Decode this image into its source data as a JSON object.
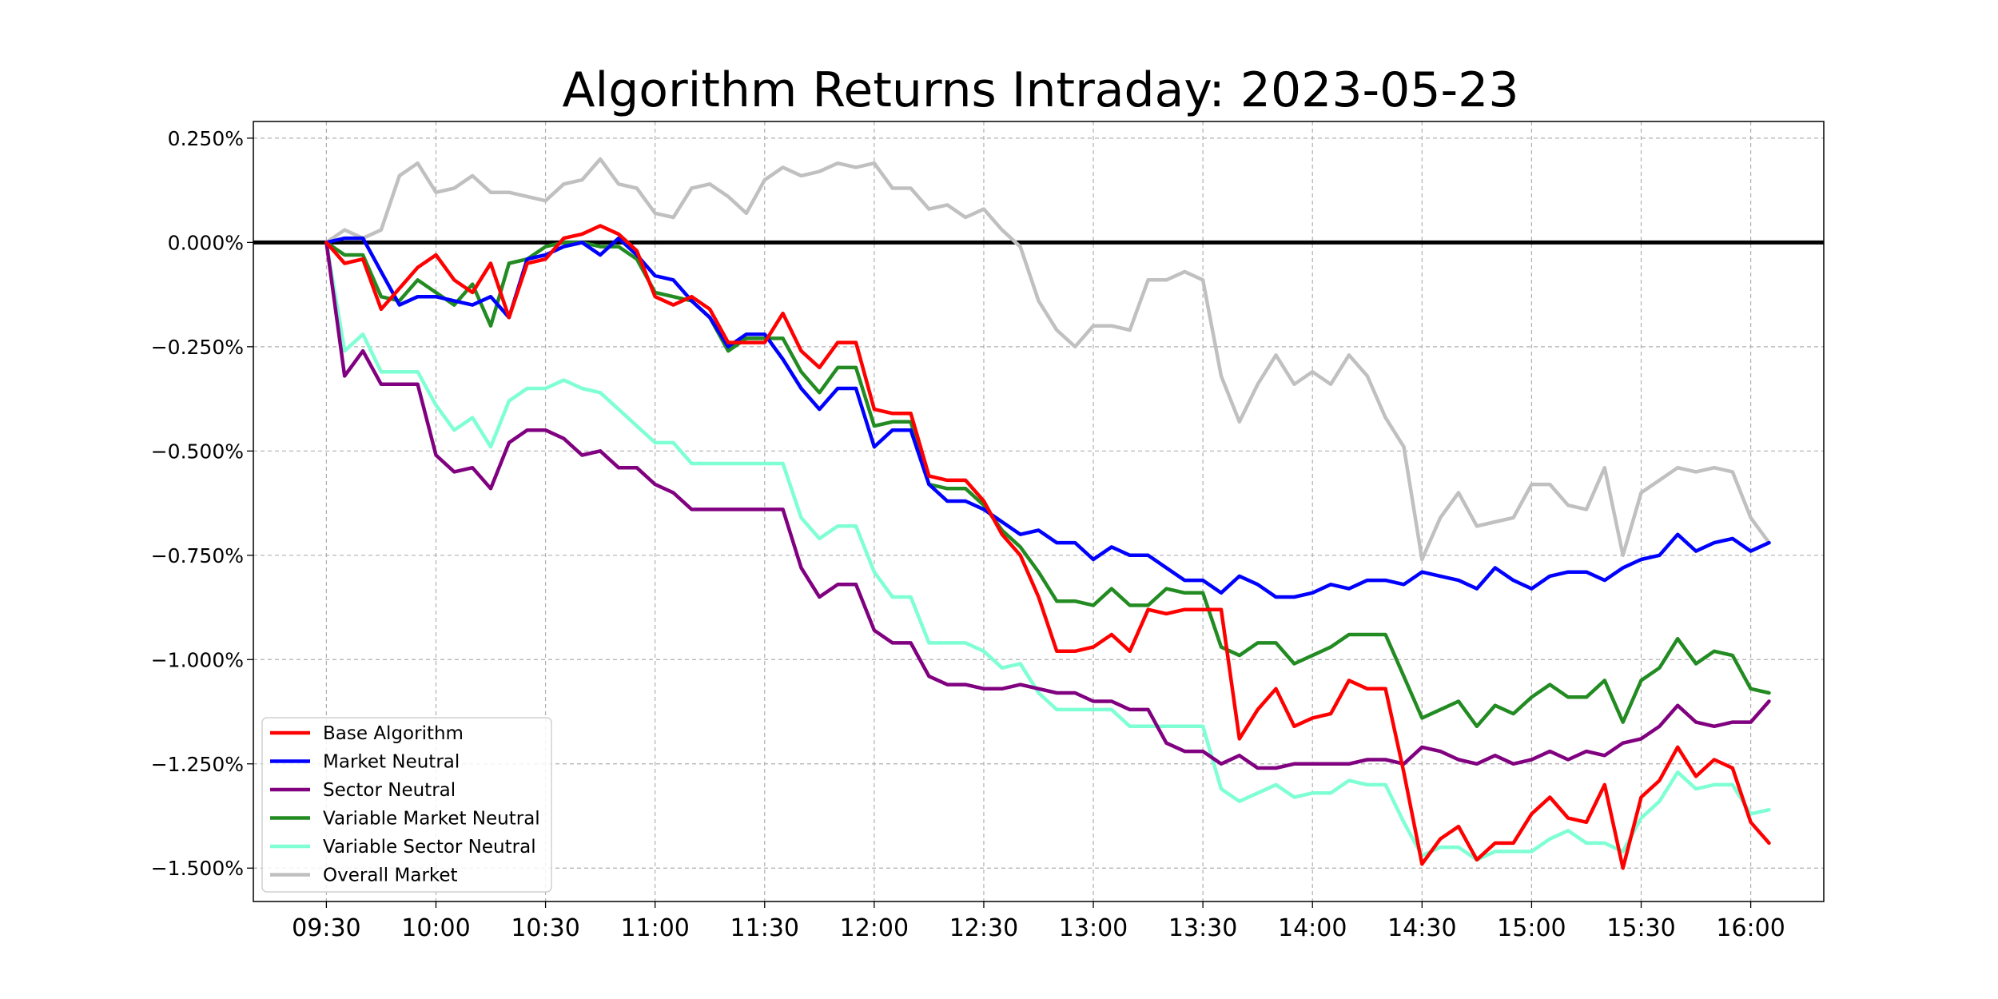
{
  "chart_data": {
    "type": "line",
    "title": "Algorithm Returns Intraday: 2023-05-23",
    "xlabel": "",
    "ylabel": "",
    "x_unit": "time of day (HH:MM)",
    "x_start": "09:30",
    "x_step_minutes": 5,
    "x_ticks": [
      "09:30",
      "10:00",
      "10:30",
      "11:00",
      "11:30",
      "12:00",
      "12:30",
      "13:00",
      "13:30",
      "14:00",
      "14:30",
      "15:00",
      "15:30",
      "16:00"
    ],
    "y_unit": "percent",
    "y_ticks": [
      0.25,
      0.0,
      -0.25,
      -0.5,
      -0.75,
      -1.0,
      -1.25,
      -1.5
    ],
    "y_tick_labels": [
      "0.250%",
      "0.000%",
      "−0.250%",
      "−0.500%",
      "−0.750%",
      "−1.000%",
      "−1.250%",
      "−1.500%"
    ],
    "ylim": [
      -1.58,
      0.29
    ],
    "xlim": [
      "09:10",
      "16:20"
    ],
    "grid": true,
    "zero_line": true,
    "legend_position": "lower-left",
    "series": [
      {
        "name": "Base Algorithm",
        "color": "#ff0000",
        "values": [
          0.0,
          -0.05,
          -0.04,
          -0.16,
          -0.11,
          -0.06,
          -0.03,
          -0.09,
          -0.12,
          -0.05,
          -0.18,
          -0.05,
          -0.04,
          0.01,
          0.02,
          0.04,
          0.02,
          -0.02,
          -0.13,
          -0.15,
          -0.13,
          -0.16,
          -0.24,
          -0.24,
          -0.24,
          -0.17,
          -0.26,
          -0.3,
          -0.24,
          -0.24,
          -0.4,
          -0.41,
          -0.41,
          -0.56,
          -0.57,
          -0.57,
          -0.62,
          -0.7,
          -0.75,
          -0.85,
          -0.98,
          -0.98,
          -0.97,
          -0.94,
          -0.98,
          -0.88,
          -0.89,
          -0.88,
          -0.88,
          -0.88,
          -1.19,
          -1.12,
          -1.07,
          -1.16,
          -1.14,
          -1.13,
          -1.05,
          -1.07,
          -1.07,
          -1.27,
          -1.49,
          -1.43,
          -1.4,
          -1.48,
          -1.44,
          -1.44,
          -1.37,
          -1.33,
          -1.38,
          -1.39,
          -1.3,
          -1.5,
          -1.33,
          -1.29,
          -1.21,
          -1.28,
          -1.24,
          -1.26,
          -1.39,
          -1.44
        ]
      },
      {
        "name": "Market Neutral",
        "color": "#0000ff",
        "values": [
          0.0,
          0.01,
          0.01,
          -0.07,
          -0.15,
          -0.13,
          -0.13,
          -0.14,
          -0.15,
          -0.13,
          -0.18,
          -0.04,
          -0.03,
          -0.01,
          0.0,
          -0.03,
          0.01,
          -0.03,
          -0.08,
          -0.09,
          -0.14,
          -0.18,
          -0.25,
          -0.22,
          -0.22,
          -0.28,
          -0.35,
          -0.4,
          -0.35,
          -0.35,
          -0.49,
          -0.45,
          -0.45,
          -0.58,
          -0.62,
          -0.62,
          -0.64,
          -0.67,
          -0.7,
          -0.69,
          -0.72,
          -0.72,
          -0.76,
          -0.73,
          -0.75,
          -0.75,
          -0.78,
          -0.81,
          -0.81,
          -0.84,
          -0.8,
          -0.82,
          -0.85,
          -0.85,
          -0.84,
          -0.82,
          -0.83,
          -0.81,
          -0.81,
          -0.82,
          -0.79,
          -0.8,
          -0.81,
          -0.83,
          -0.78,
          -0.81,
          -0.83,
          -0.8,
          -0.79,
          -0.79,
          -0.81,
          -0.78,
          -0.76,
          -0.75,
          -0.7,
          -0.74,
          -0.72,
          -0.71,
          -0.74,
          -0.72
        ]
      },
      {
        "name": "Sector Neutral",
        "color": "#800080",
        "values": [
          0.0,
          -0.32,
          -0.26,
          -0.34,
          -0.34,
          -0.34,
          -0.51,
          -0.55,
          -0.54,
          -0.59,
          -0.48,
          -0.45,
          -0.45,
          -0.47,
          -0.51,
          -0.5,
          -0.54,
          -0.54,
          -0.58,
          -0.6,
          -0.64,
          -0.64,
          -0.64,
          -0.64,
          -0.64,
          -0.64,
          -0.78,
          -0.85,
          -0.82,
          -0.82,
          -0.93,
          -0.96,
          -0.96,
          -1.04,
          -1.06,
          -1.06,
          -1.07,
          -1.07,
          -1.06,
          -1.07,
          -1.08,
          -1.08,
          -1.1,
          -1.1,
          -1.12,
          -1.12,
          -1.2,
          -1.22,
          -1.22,
          -1.25,
          -1.23,
          -1.26,
          -1.26,
          -1.25,
          -1.25,
          -1.25,
          -1.25,
          -1.24,
          -1.24,
          -1.25,
          -1.21,
          -1.22,
          -1.24,
          -1.25,
          -1.23,
          -1.25,
          -1.24,
          -1.22,
          -1.24,
          -1.22,
          -1.23,
          -1.2,
          -1.19,
          -1.16,
          -1.11,
          -1.15,
          -1.16,
          -1.15,
          -1.15,
          -1.1
        ]
      },
      {
        "name": "Variable Market Neutral",
        "color": "#228b22",
        "values": [
          0.0,
          -0.03,
          -0.03,
          -0.13,
          -0.14,
          -0.09,
          -0.12,
          -0.15,
          -0.1,
          -0.2,
          -0.05,
          -0.04,
          -0.01,
          0.0,
          0.0,
          -0.01,
          -0.01,
          -0.04,
          -0.12,
          -0.13,
          -0.14,
          -0.18,
          -0.26,
          -0.23,
          -0.23,
          -0.23,
          -0.31,
          -0.36,
          -0.3,
          -0.3,
          -0.44,
          -0.43,
          -0.43,
          -0.58,
          -0.59,
          -0.59,
          -0.63,
          -0.69,
          -0.73,
          -0.79,
          -0.86,
          -0.86,
          -0.87,
          -0.83,
          -0.87,
          -0.87,
          -0.83,
          -0.84,
          -0.84,
          -0.97,
          -0.99,
          -0.96,
          -0.96,
          -1.01,
          -0.99,
          -0.97,
          -0.94,
          -0.94,
          -0.94,
          -1.04,
          -1.14,
          -1.12,
          -1.1,
          -1.16,
          -1.11,
          -1.13,
          -1.09,
          -1.06,
          -1.09,
          -1.09,
          -1.05,
          -1.15,
          -1.05,
          -1.02,
          -0.95,
          -1.01,
          -0.98,
          -0.99,
          -1.07,
          -1.08
        ]
      },
      {
        "name": "Variable Sector Neutral",
        "color": "#7fffd4",
        "values": [
          0.0,
          -0.26,
          -0.22,
          -0.31,
          -0.31,
          -0.31,
          -0.39,
          -0.45,
          -0.42,
          -0.49,
          -0.38,
          -0.35,
          -0.35,
          -0.33,
          -0.35,
          -0.36,
          -0.4,
          -0.44,
          -0.48,
          -0.48,
          -0.53,
          -0.53,
          -0.53,
          -0.53,
          -0.53,
          -0.53,
          -0.66,
          -0.71,
          -0.68,
          -0.68,
          -0.79,
          -0.85,
          -0.85,
          -0.96,
          -0.96,
          -0.96,
          -0.98,
          -1.02,
          -1.01,
          -1.08,
          -1.12,
          -1.12,
          -1.12,
          -1.12,
          -1.16,
          -1.16,
          -1.16,
          -1.16,
          -1.16,
          -1.31,
          -1.34,
          -1.32,
          -1.3,
          -1.33,
          -1.32,
          -1.32,
          -1.29,
          -1.3,
          -1.3,
          -1.39,
          -1.47,
          -1.45,
          -1.45,
          -1.48,
          -1.46,
          -1.46,
          -1.46,
          -1.43,
          -1.41,
          -1.44,
          -1.44,
          -1.46,
          -1.38,
          -1.34,
          -1.27,
          -1.31,
          -1.3,
          -1.3,
          -1.37,
          -1.36
        ]
      },
      {
        "name": "Overall Market",
        "color": "#c0c0c0",
        "values": [
          0.0,
          0.03,
          0.01,
          0.03,
          0.16,
          0.19,
          0.12,
          0.13,
          0.16,
          0.12,
          0.12,
          0.11,
          0.1,
          0.14,
          0.15,
          0.2,
          0.14,
          0.13,
          0.07,
          0.06,
          0.13,
          0.14,
          0.11,
          0.07,
          0.15,
          0.18,
          0.16,
          0.17,
          0.19,
          0.18,
          0.19,
          0.13,
          0.13,
          0.08,
          0.09,
          0.06,
          0.08,
          0.03,
          -0.01,
          -0.14,
          -0.21,
          -0.25,
          -0.2,
          -0.2,
          -0.21,
          -0.09,
          -0.09,
          -0.07,
          -0.09,
          -0.32,
          -0.43,
          -0.34,
          -0.27,
          -0.34,
          -0.31,
          -0.34,
          -0.27,
          -0.32,
          -0.42,
          -0.49,
          -0.76,
          -0.66,
          -0.6,
          -0.68,
          -0.67,
          -0.66,
          -0.58,
          -0.58,
          -0.63,
          -0.64,
          -0.54,
          -0.75,
          -0.6,
          -0.57,
          -0.54,
          -0.55,
          -0.54,
          -0.55,
          -0.66,
          -0.72
        ]
      }
    ]
  }
}
